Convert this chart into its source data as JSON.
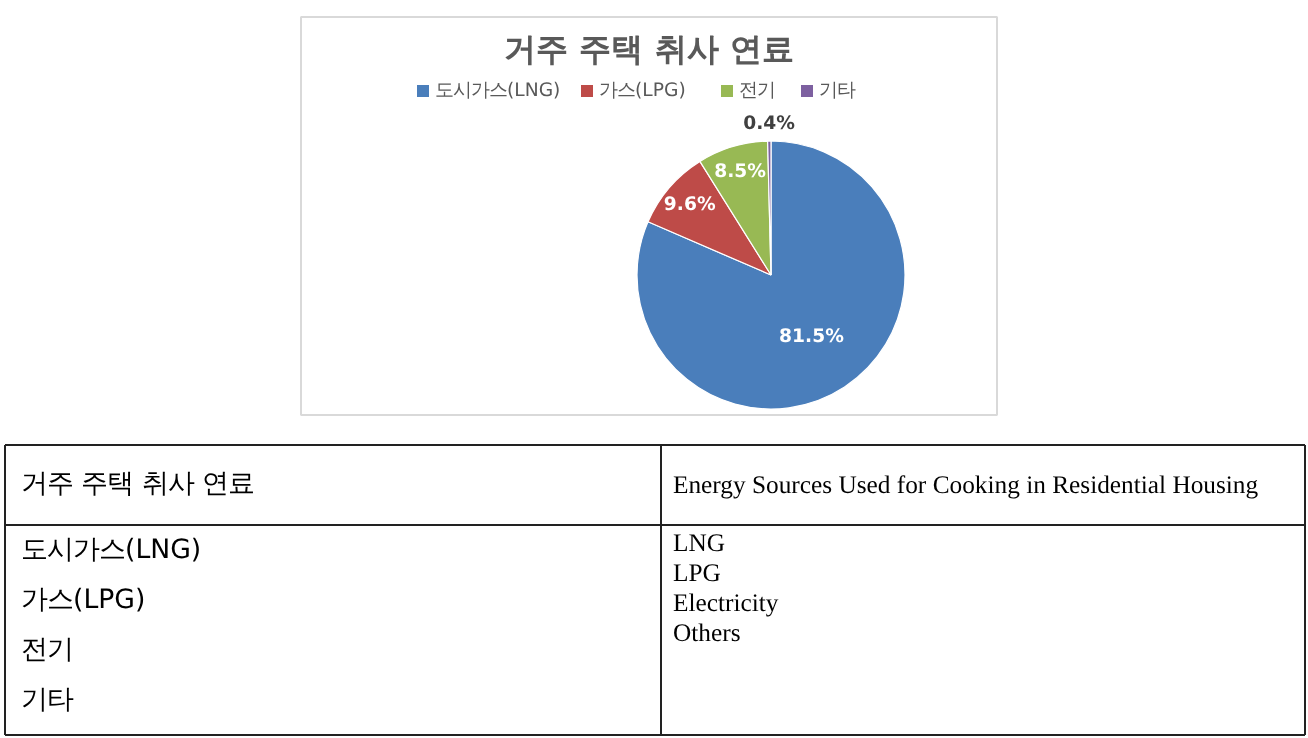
{
  "chart_data": {
    "type": "pie",
    "title": "거주 주택 취사 연료",
    "categories": [
      "도시가스(LNG)",
      "가스(LPG)",
      "전기",
      "기타"
    ],
    "values": [
      81.5,
      9.6,
      8.5,
      0.4
    ],
    "colors": [
      "#4a7ebb",
      "#be4b48",
      "#98b954",
      "#7d60a0"
    ],
    "value_labels": [
      "81.5%",
      "9.6%",
      "8.5%",
      "0.4%"
    ],
    "legend": "top",
    "annotations": [
      "거주 주택 취사 연료",
      "도시가스(LNG)",
      "가스(LPG)",
      "전기",
      "기타",
      "Energy Sources Used for Cooking in Residential Housing",
      "LNG",
      "LPG",
      "Electricity",
      "Others"
    ]
  }
}
